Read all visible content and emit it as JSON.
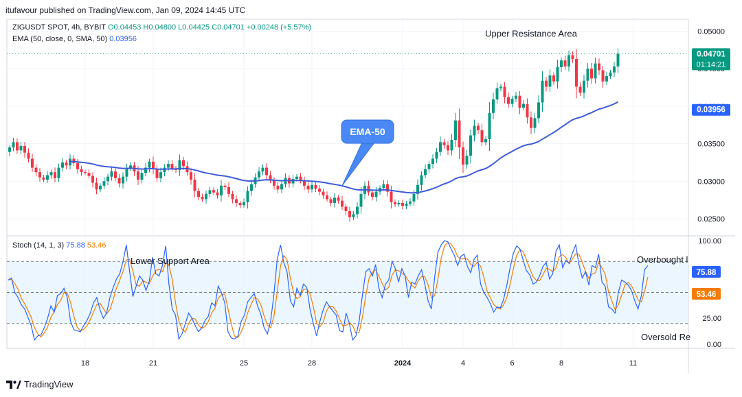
{
  "attribution": "itufavour published on TradingView.com, Jan 09, 2024 14:45 UTC",
  "symbol": "ZIGUSDT SPOT, 4h, BYBIT",
  "ohlc": {
    "o_label": "O",
    "o": "0.04453",
    "h_label": "H",
    "h": "0.04800",
    "l_label": "L",
    "l": "0.04425",
    "c_label": "C",
    "c": "0.04701",
    "change": "+0.00248 (+5.57%)"
  },
  "ema_label": "EMA (50, close, 0, SMA, 50)",
  "ema_value": "0.03956",
  "stoch_label": "Stoch (14, 1, 3)",
  "stoch_k_value": "75.88",
  "stoch_d_value": "53.46",
  "price_badge": {
    "price": "0.04701",
    "countdown": "01:14:21"
  },
  "ema_badge": "0.03956",
  "footer_brand": "TradingView",
  "colors": {
    "up": "#089981",
    "down": "#f23645",
    "ema": "#3d5bdb",
    "stoch_k": "#2962ff",
    "stoch_d": "#f57c00",
    "band": "#e3f2fd",
    "callout": "#4a89f5"
  },
  "chart_data": [
    {
      "type": "candlestick",
      "title": "",
      "y_ticks": [
        "0.05000",
        "0.04500",
        "0.04000",
        "0.03500",
        "0.03000",
        "0.02500"
      ],
      "ylim": [
        0.0228,
        0.0516
      ],
      "x_tick_labels": [
        {
          "label": "18",
          "index": 20
        },
        {
          "label": "21",
          "index": 38
        },
        {
          "label": "25",
          "index": 62
        },
        {
          "label": "28",
          "index": 80
        },
        {
          "label": "2024",
          "index": 104
        },
        {
          "label": "4",
          "index": 120
        },
        {
          "label": "6",
          "index": 133
        },
        {
          "label": "8",
          "index": 146
        },
        {
          "label": "11",
          "index": 165
        }
      ],
      "annotations": [
        {
          "text": "Upper Resistance Area",
          "index": 138,
          "value": 0.05
        },
        {
          "text": "EMA-50",
          "index": 88,
          "value": 0.0294
        }
      ],
      "ema_period": 50,
      "close": [
        0.0345,
        0.0352,
        0.0341,
        0.0347,
        0.0338,
        0.033,
        0.0318,
        0.0312,
        0.0305,
        0.0302,
        0.0308,
        0.0312,
        0.0304,
        0.0318,
        0.0325,
        0.0321,
        0.033,
        0.0324,
        0.0316,
        0.0312,
        0.0311,
        0.0307,
        0.0298,
        0.0289,
        0.0294,
        0.03,
        0.0306,
        0.0313,
        0.0304,
        0.0297,
        0.0306,
        0.0317,
        0.0321,
        0.0313,
        0.0302,
        0.0311,
        0.0318,
        0.0326,
        0.0316,
        0.0304,
        0.0312,
        0.0318,
        0.0323,
        0.0317,
        0.0315,
        0.0328,
        0.032,
        0.0312,
        0.0302,
        0.0287,
        0.0279,
        0.0276,
        0.0283,
        0.0288,
        0.0285,
        0.0281,
        0.0294,
        0.0292,
        0.0283,
        0.0276,
        0.0271,
        0.0268,
        0.0272,
        0.0287,
        0.0296,
        0.0305,
        0.0313,
        0.0318,
        0.0308,
        0.0301,
        0.0294,
        0.0289,
        0.0296,
        0.0304,
        0.0297,
        0.0303,
        0.0306,
        0.0301,
        0.0294,
        0.0289,
        0.0295,
        0.029,
        0.0286,
        0.0281,
        0.0276,
        0.0271,
        0.0278,
        0.0274,
        0.0266,
        0.026,
        0.0252,
        0.0256,
        0.0266,
        0.0283,
        0.0294,
        0.0285,
        0.0279,
        0.0286,
        0.0291,
        0.0296,
        0.0286,
        0.0272,
        0.0269,
        0.0271,
        0.0267,
        0.027,
        0.0273,
        0.0283,
        0.0295,
        0.0308,
        0.0316,
        0.0323,
        0.033,
        0.0339,
        0.0352,
        0.0348,
        0.0341,
        0.0355,
        0.0381,
        0.0345,
        0.0322,
        0.0334,
        0.0361,
        0.0374,
        0.0368,
        0.0352,
        0.0356,
        0.0391,
        0.0409,
        0.0424,
        0.0426,
        0.0412,
        0.0403,
        0.041,
        0.0414,
        0.0398,
        0.0403,
        0.0385,
        0.0371,
        0.0384,
        0.0405,
        0.0434,
        0.0426,
        0.0441,
        0.0433,
        0.0452,
        0.0461,
        0.0453,
        0.0468,
        0.0463,
        0.0426,
        0.0418,
        0.0434,
        0.045,
        0.0437,
        0.0457,
        0.0448,
        0.0433,
        0.044,
        0.0445,
        0.0453,
        0.047
      ]
    },
    {
      "type": "line",
      "title": "Stoch (14, 1, 3)",
      "y_ticks": [
        "100.00",
        "25.00",
        "0.00"
      ],
      "ylim": [
        -4,
        104
      ],
      "reference_lines": [
        80,
        50,
        20
      ],
      "annotations": [
        {
          "text": "Lower Support Area",
          "index": 30,
          "value": 87
        },
        {
          "text": "Overbought l",
          "index": 158,
          "value": 87
        },
        {
          "text": "Oversold Re",
          "index": 158,
          "value": 8
        }
      ],
      "series": [
        {
          "name": "%K",
          "values": [
            62,
            64,
            50,
            45,
            38,
            34,
            26,
            18,
            4,
            8,
            9,
            16,
            25,
            37,
            31,
            47,
            49,
            54,
            45,
            22,
            14,
            13,
            12,
            18,
            23,
            30,
            40,
            45,
            33,
            25,
            30,
            45,
            55,
            63,
            68,
            80,
            96,
            70,
            46,
            56,
            66,
            62,
            52,
            61,
            84,
            68,
            66,
            76,
            95,
            58,
            34,
            28,
            5,
            10,
            20,
            30,
            25,
            18,
            12,
            16,
            23,
            27,
            40,
            37,
            56,
            50,
            40,
            12,
            6,
            5,
            8,
            22,
            28,
            41,
            45,
            49,
            37,
            29,
            16,
            10,
            22,
            48,
            82,
            96,
            79,
            70,
            42,
            36,
            54,
            47,
            58,
            55,
            34,
            20,
            8,
            22,
            33,
            41,
            36,
            32,
            28,
            13,
            12,
            30,
            20,
            4,
            8,
            23,
            48,
            70,
            73,
            66,
            77,
            54,
            45,
            58,
            62,
            80,
            73,
            60,
            73,
            66,
            45,
            60,
            58,
            66,
            72,
            58,
            42,
            34,
            65,
            89,
            96,
            100,
            99,
            92,
            86,
            76,
            85,
            87,
            75,
            69,
            82,
            86,
            58,
            50,
            45,
            39,
            31,
            36,
            35,
            43,
            57,
            74,
            88,
            95,
            92,
            81,
            71,
            67,
            58,
            60,
            66,
            75,
            79,
            63,
            68,
            90,
            96,
            74,
            81,
            78,
            88,
            96,
            77,
            64,
            70,
            57,
            76,
            74,
            87,
            60,
            56,
            36,
            34,
            30,
            50,
            62,
            60,
            57,
            52,
            42,
            34,
            47,
            72,
            76
          ]
        }
      ]
    }
  ]
}
